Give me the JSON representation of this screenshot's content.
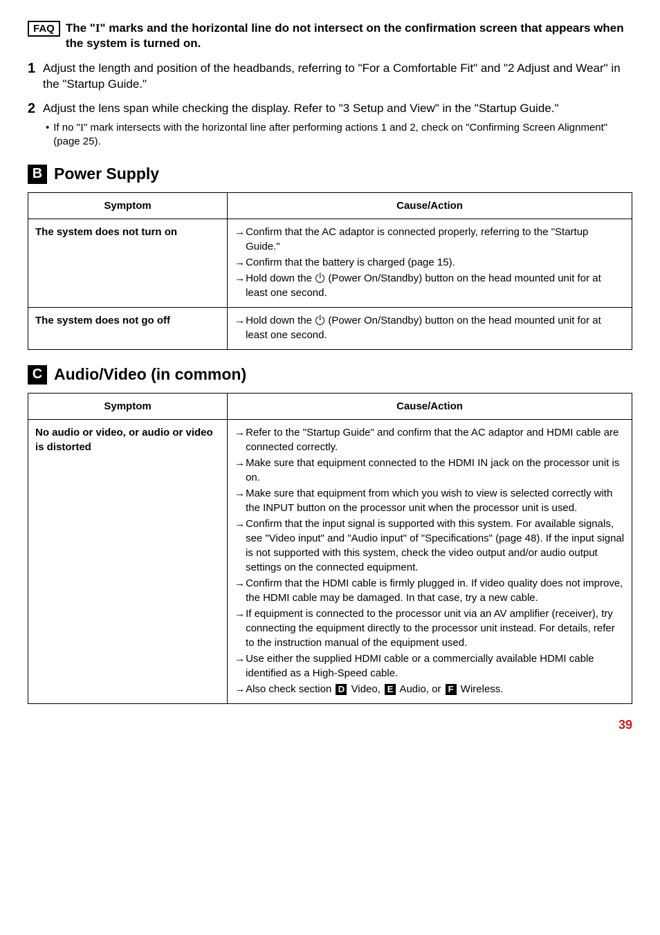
{
  "faq": {
    "label": "FAQ",
    "title": "The \"I\" marks and the horizontal line do not intersect on the confirmation screen that appears when the system is turned on."
  },
  "steps": [
    {
      "num": "1",
      "text": "Adjust the length and position of the headbands, referring to \"For a Comfortable Fit\" and \"2 Adjust and Wear\" in the \"Startup Guide.\""
    },
    {
      "num": "2",
      "text": "Adjust the lens span while checking the display. Refer to \"3 Setup and View\" in the \"Startup Guide.\"",
      "sub": "If no \"I\" mark intersects with the horizontal line after performing actions 1 and 2, check on \"Confirming Screen Alignment\" (page 25)."
    }
  ],
  "sectionB": {
    "letter": "B",
    "title": "Power Supply",
    "headers": {
      "symptom": "Symptom",
      "cause": "Cause/Action"
    },
    "rows": [
      {
        "symptom": "The system does not turn on",
        "causes": [
          "Confirm that the AC adaptor is connected properly, referring to the \"Startup Guide.\"",
          "Confirm that the battery is charged (page 15).",
          "Hold down the __POWER__ (Power On/Standby) button on the head mounted unit for at least one second."
        ]
      },
      {
        "symptom": "The system does not go off",
        "causes": [
          "Hold down the __POWER__ (Power On/Standby) button on the head mounted unit for at least one second."
        ]
      }
    ]
  },
  "sectionC": {
    "letter": "C",
    "title": "Audio/Video (in common)",
    "headers": {
      "symptom": "Symptom",
      "cause": "Cause/Action"
    },
    "rows": [
      {
        "symptom": "No audio or video, or audio or video is distorted",
        "causes": [
          "Refer to the \"Startup Guide\" and confirm that the AC adaptor and HDMI cable are connected correctly.",
          "Make sure that equipment connected to the HDMI IN jack on the processor unit is on.",
          "Make sure that equipment from which you wish to view is selected correctly with the INPUT button on the processor unit when the processor unit is used.",
          "Confirm that the input signal is supported with this system. For available signals, see \"Video input\" and \"Audio input\" of \"Specifications\" (page 48). If the input signal is not supported with this system, check the video output and/or audio output settings on the connected equipment.",
          "Confirm that the HDMI cable is firmly plugged in. If video quality does not improve, the HDMI cable may be damaged. In that case, try a new cable.",
          "If equipment is connected to the processor unit via an AV amplifier (receiver), try connecting the equipment directly to the processor unit instead. For details, refer to the instruction manual of the equipment used.",
          "Use either the supplied HDMI cable or a commercially available HDMI cable identified as a High-Speed cable.",
          "Also check section __DBOX__ Video, __EBOX__ Audio, or __FBOX__ Wireless."
        ]
      }
    ]
  },
  "pageNumber": "39"
}
